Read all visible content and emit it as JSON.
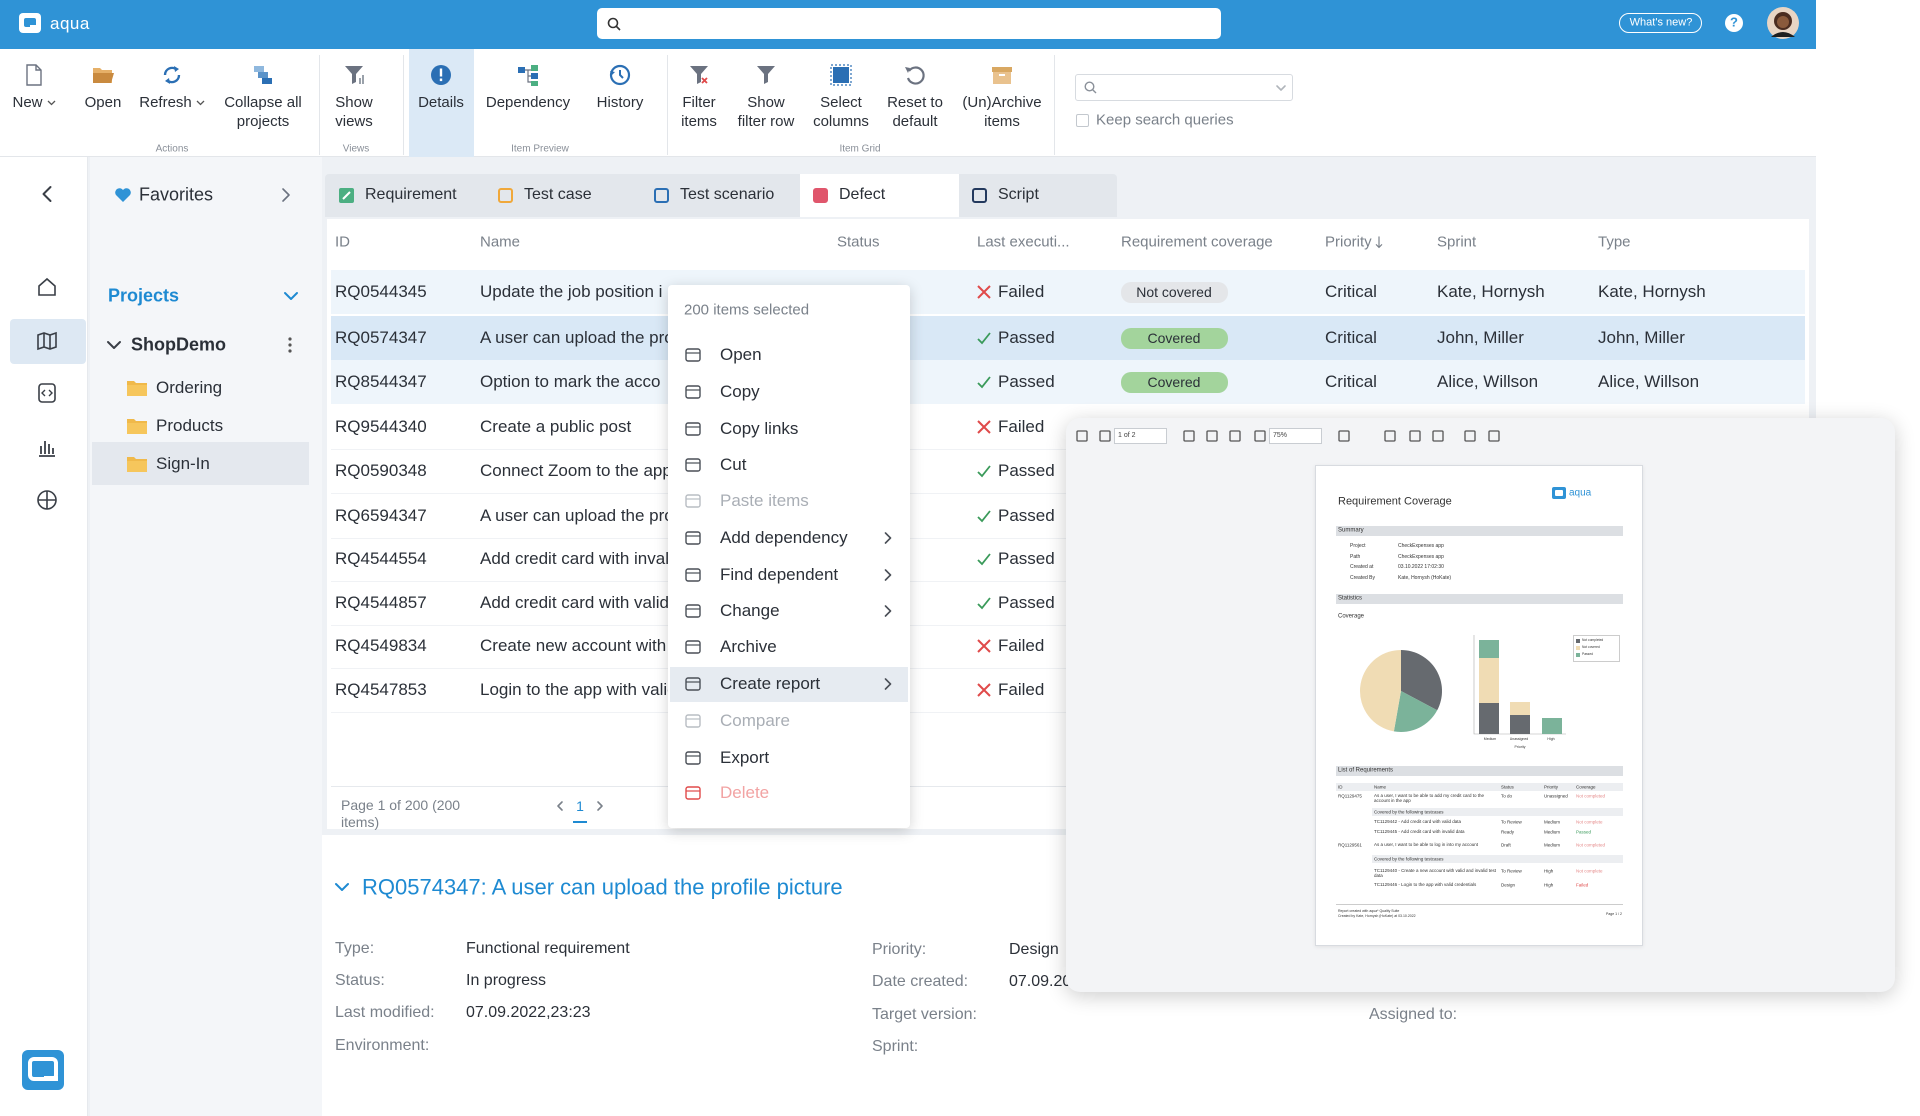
{
  "topbar": {
    "logo": "aqua",
    "whats_new": "What's new?",
    "help": "?"
  },
  "ribbon": {
    "buttons": [
      "New",
      "Open",
      "Refresh",
      "Collapse all projects",
      "Show views",
      "Details",
      "Dependency",
      "History",
      "Filter items",
      "Show filter row",
      "Select columns",
      "Reset to default",
      "(Un)Archive items"
    ],
    "groups": [
      "Actions",
      "Views",
      "Item Preview",
      "Item Grid"
    ],
    "keep_search": "Keep search queries"
  },
  "sidebar": {
    "favorites": "Favorites",
    "projects": "Projects",
    "project": "ShopDemo",
    "folders": [
      "Ordering",
      "Products",
      "Sign-In"
    ]
  },
  "tabs": [
    "Requirement",
    "Test case",
    "Test scenario",
    "Defect",
    "Script"
  ],
  "grid": {
    "columns": [
      "ID",
      "Name",
      "Status",
      "Last executi...",
      "Requirement coverage",
      "Priority",
      "Sprint",
      "Type"
    ],
    "rows": [
      {
        "id": "RQ0544345",
        "name": "Update the job position i",
        "last": "Failed",
        "coverage": "Not covered",
        "priority": "Critical",
        "sprint": "Kate, Hornysh",
        "type": "Kate, Hornysh"
      },
      {
        "id": "RQ0574347",
        "name": "A user can upload the profile picture",
        "last": "Passed",
        "coverage": "Covered",
        "priority": "Critical",
        "sprint": "John, Miller",
        "type": "John, Miller"
      },
      {
        "id": "RQ8544347",
        "name": "Option to mark the acco",
        "last": "Passed",
        "coverage": "Covered",
        "priority": "Critical",
        "sprint": "Alice, Willson",
        "type": "Alice, Willson"
      },
      {
        "id": "RQ9544340",
        "name": "Create a public post",
        "last": "Failed"
      },
      {
        "id": "RQ0590348",
        "name": "Connect Zoom to the app",
        "last": "Passed"
      },
      {
        "id": "RQ6594347",
        "name": "A user can upload the pro",
        "last": "Passed"
      },
      {
        "id": "RQ4544554",
        "name": "Add credit card with invali",
        "last": "Passed"
      },
      {
        "id": "RQ4544857",
        "name": "Add credit card with valid",
        "last": "Passed"
      },
      {
        "id": "RQ4549834",
        "name": "Create new account with",
        "last": "Failed"
      },
      {
        "id": "RQ4547853",
        "name": "Login to the app with valid",
        "last": "Failed"
      }
    ]
  },
  "pagination": {
    "text": "Page 1 of 200 (200 items)",
    "page": "1"
  },
  "context_menu": {
    "header": "200 items selected",
    "items": [
      {
        "label": "Open"
      },
      {
        "label": "Copy"
      },
      {
        "label": "Copy links"
      },
      {
        "label": "Cut"
      },
      {
        "label": "Paste items",
        "disabled": true
      },
      {
        "label": "Add dependency",
        "submenu": true
      },
      {
        "label": "Find  dependent",
        "submenu": true
      },
      {
        "label": "Change",
        "submenu": true
      },
      {
        "label": "Archive"
      },
      {
        "label": "Create report",
        "submenu": true,
        "highlighted": true
      },
      {
        "label": "Compare",
        "disabled": true
      },
      {
        "label": "Export"
      },
      {
        "label": "Delete",
        "danger": true
      }
    ]
  },
  "details": {
    "title": "RQ0574347: A user can upload the profile picture",
    "fields_left": [
      {
        "label": "Type:",
        "value": "Functional requirement"
      },
      {
        "label": "Status:",
        "value": "In progress"
      },
      {
        "label": "Last modified:",
        "value": "07.09.2022,23:23"
      },
      {
        "label": "Environment:"
      }
    ],
    "fields_mid": [
      {
        "label": "Priority:",
        "value": "Design"
      },
      {
        "label": "Date created:",
        "value": "07.09.20"
      },
      {
        "label": "Target version:"
      },
      {
        "label": "Sprint:"
      }
    ],
    "fields_right": [
      {
        "label": "Assigned to:"
      }
    ]
  },
  "report": {
    "pager": "1 of 2",
    "zoom": "75%",
    "title": "Requirement Coverage",
    "logo": "aqua",
    "summary": "Summary",
    "summary_rows": [
      [
        "Project",
        "CheckExpenses app"
      ],
      [
        "Path",
        "CheckExpenses app"
      ],
      [
        "Created at",
        "03.10.2022 17:02:30"
      ],
      [
        "Created By",
        "Kate, Hornysh (HoKate)"
      ]
    ],
    "statistics": "Statistics",
    "coverage": "Coverage",
    "chart_categories": [
      "Medium",
      "Unassigned",
      "High"
    ],
    "chart_axis": "Priority",
    "legend": [
      "Not completed",
      "Not covered",
      "Passed"
    ],
    "list_title": "List of Requirements",
    "list_columns": [
      "ID",
      "Name",
      "Status",
      "Priority",
      "Coverage"
    ],
    "list_rows": [
      {
        "id": "RQ1129475",
        "name": "As a user, I want to be able to add my credit card to the account in the app",
        "status": "To do",
        "priority": "Unassigned",
        "coverage": "Not completed"
      },
      {
        "group": "Covered by the following testcases"
      },
      {
        "name": "TC1129442 - Add credit card with valid data",
        "status": "To Review",
        "priority": "Medium",
        "coverage": "Not complete"
      },
      {
        "name": "TC1129445 - Add credit card with invalid data",
        "status": "Ready",
        "priority": "Medium",
        "coverage": "Passed"
      },
      {
        "id": "RQ1129561",
        "name": "As a user, I want to be able to log in into my account",
        "status": "Draft",
        "priority": "Medium",
        "coverage": "Not completed"
      },
      {
        "group": "Covered by the following testcases"
      },
      {
        "name": "TC1129440 - Create a new account with valid and invalid test data",
        "status": "To Review",
        "priority": "High",
        "coverage": "Not complete"
      },
      {
        "name": "TC1129446 - Login to the app with valid credentials",
        "status": "Design",
        "priority": "High",
        "coverage": "Failed"
      }
    ],
    "footer": [
      "Report created with aqua* Quality Suite",
      "Created by Kate, Hornysh (HoKate) at 03.10.2022"
    ],
    "page": "Page 1 / 2"
  }
}
